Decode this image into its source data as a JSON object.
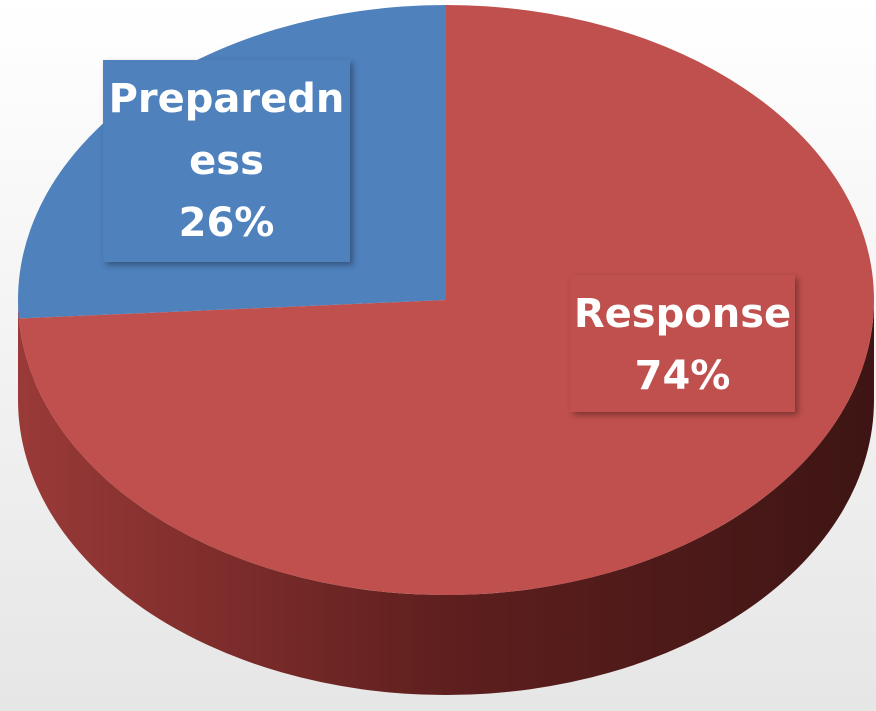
{
  "chart_data": {
    "type": "pie",
    "categories": [
      "Preparedness",
      "Response"
    ],
    "values": [
      26,
      74
    ],
    "value_labels": [
      "26%",
      "74%"
    ],
    "colors": [
      "#4f81bd",
      "#c0504d"
    ]
  }
}
